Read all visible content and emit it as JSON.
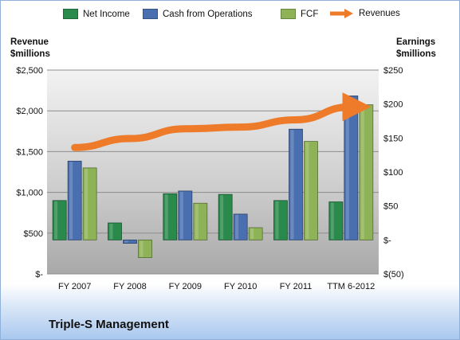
{
  "legend": [
    {
      "label": "Net Income",
      "color": "#2a8a4c"
    },
    {
      "label": "Cash from Operations",
      "color": "#4a6fb0"
    },
    {
      "label": "FCF",
      "color": "#8db356"
    },
    {
      "label": "Revenues",
      "color": "#ee7b2a"
    }
  ],
  "axis_titles": {
    "left_line1": "Revenue",
    "left_line2": "$millions",
    "right_line1": "Earnings",
    "right_line2": "$millions"
  },
  "company": "Triple-S Management",
  "chart_data": {
    "type": "bar",
    "categories": [
      "FY 2007",
      "FY 2008",
      "FY 2009",
      "FY 2010",
      "FY 2011",
      "TTM 6-2012"
    ],
    "left_axis": {
      "ylim": [
        0,
        2500
      ],
      "ticks": [
        0,
        500,
        1000,
        1500,
        2000,
        2500
      ],
      "tick_labels": [
        "$-",
        "$500",
        "$1,000",
        "$1,500",
        "$2,000",
        "$2,500"
      ]
    },
    "right_axis": {
      "ylim": [
        -50,
        250
      ],
      "ticks": [
        -50,
        0,
        50,
        100,
        150,
        200,
        250
      ],
      "tick_labels": [
        "$(50)",
        "$-",
        "$50",
        "$100",
        "$150",
        "$200",
        "$250"
      ]
    },
    "series": [
      {
        "name": "Net Income",
        "axis": "right",
        "type": "bar",
        "color": "#2a8a4c",
        "values": [
          58,
          25,
          68,
          67,
          58,
          56
        ]
      },
      {
        "name": "Cash from Operations",
        "axis": "right",
        "type": "bar",
        "color": "#4a6fb0",
        "values": [
          116,
          -5,
          72,
          38,
          163,
          212
        ]
      },
      {
        "name": "FCF",
        "axis": "right",
        "type": "bar",
        "color": "#8db356",
        "values": [
          106,
          -26,
          54,
          18,
          145,
          199
        ]
      },
      {
        "name": "Revenues",
        "axis": "left",
        "type": "line",
        "color": "#ee7b2a",
        "values": [
          1550,
          1660,
          1780,
          1800,
          1890,
          2050
        ]
      }
    ],
    "grid": true,
    "legend_position": "top"
  }
}
